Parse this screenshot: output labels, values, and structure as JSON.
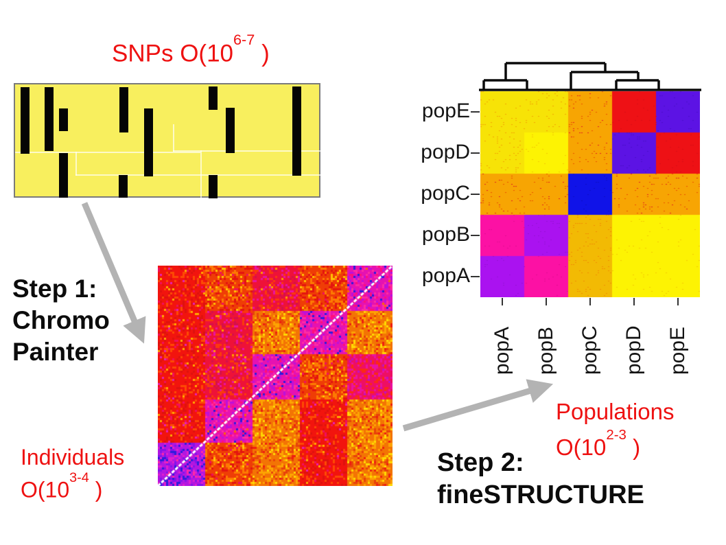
{
  "labels": {
    "snps_prefix": "SNPs O(10",
    "snps_sup": "6-7",
    "snps_suffix": " )",
    "step1_line1": "Step 1:",
    "step1_line2": "Chromo",
    "step1_line3": "Painter",
    "individuals_line1": "Individuals",
    "individuals_prefix": "O(10",
    "individuals_sup": "3-4",
    "individuals_suffix": " )",
    "populations_line1": "Populations",
    "populations_prefix": "O(10",
    "populations_sup": "2-3",
    "populations_suffix": " )",
    "step2_line1": "Step 2:",
    "step2_line2": "fineSTRUCTURE"
  },
  "colors": {
    "red_text": "#ee1111",
    "black_text": "#0c0c0c",
    "arrow_gray": "#b3b3b3",
    "snps_bg": "#f8ef5e",
    "snps_border": "#7a7a7a",
    "bar_black": "#050505",
    "dendrogram_black": "#0a0a0a"
  },
  "snps_figure": {
    "bars": [
      [
        8,
        4,
        13,
        97
      ],
      [
        43,
        4,
        13,
        93
      ],
      [
        64,
        35,
        13,
        33
      ],
      [
        64,
        100,
        13,
        65
      ],
      [
        152,
        4,
        13,
        66
      ],
      [
        151,
        132,
        13,
        33
      ],
      [
        188,
        35,
        13,
        99
      ],
      [
        282,
        3,
        13,
        34
      ],
      [
        282,
        132,
        13,
        34
      ],
      [
        307,
        34,
        13,
        66
      ],
      [
        404,
        3,
        13,
        130
      ]
    ],
    "faint_lines": [
      [
        0,
        98,
        270,
        2
      ],
      [
        230,
        96,
        217,
        2
      ],
      [
        88,
        131,
        359,
        2
      ],
      [
        0,
        195,
        300,
        2
      ],
      [
        330,
        195,
        117,
        2
      ],
      [
        130,
        237,
        200,
        2
      ],
      [
        270,
        96,
        2,
        101
      ],
      [
        88,
        98,
        2,
        35
      ],
      [
        130,
        195,
        2,
        44
      ],
      [
        330,
        195,
        2,
        44
      ],
      [
        230,
        58,
        2,
        40
      ]
    ]
  },
  "chart_data": [
    {
      "type": "heatmap",
      "title": "ChromoPainter coancestry matrix (individuals x individuals)",
      "rows": 5,
      "cols": 5,
      "diagonal": "white line, bottom-left to top-right",
      "cells": [
        [
          "red",
          "orangeRed",
          "crimson",
          "orangeRed",
          "magenta"
        ],
        [
          "red",
          "crimson",
          "orange",
          "magenta",
          "orange"
        ],
        [
          "red",
          "crimson",
          "magenta",
          "orangeRed",
          "crimsonMag"
        ],
        [
          "red",
          "magenta",
          "orange",
          "red",
          "orange"
        ],
        [
          "purpleDiag",
          "orangeRed",
          "orange",
          "red",
          "orange"
        ]
      ],
      "palette": {
        "red": {
          "base": "#f2140e",
          "spots": [
            [
              "#fd4a04",
              0.14
            ],
            [
              "#de120f",
              0.14
            ],
            [
              "#f00f5e",
              0.05
            ],
            [
              "#ffab00",
              0.02
            ],
            [
              "#e720b4",
              0.02
            ]
          ]
        },
        "orangeRed": {
          "base": "#ef3d06",
          "spots": [
            [
              "#fd7a02",
              0.22
            ],
            [
              "#e41410",
              0.18
            ],
            [
              "#ffc303",
              0.06
            ],
            [
              "#f00f5e",
              0.03
            ]
          ]
        },
        "orange": {
          "base": "#f37404",
          "spots": [
            [
              "#fda302",
              0.22
            ],
            [
              "#e8420a",
              0.14
            ],
            [
              "#ffd903",
              0.08
            ],
            [
              "#ef1f10",
              0.05
            ]
          ]
        },
        "crimson": {
          "base": "#ee1238",
          "spots": [
            [
              "#fb3a0c",
              0.15
            ],
            [
              "#ea12a0",
              0.12
            ],
            [
              "#d5104a",
              0.1
            ],
            [
              "#ff9d00",
              0.02
            ]
          ]
        },
        "crimsonMag": {
          "base": "#ee0f63",
          "spots": [
            [
              "#ea12a0",
              0.2
            ],
            [
              "#fb2a14",
              0.18
            ],
            [
              "#c011c0",
              0.05
            ]
          ]
        },
        "magenta": {
          "base": "#e512b2",
          "spots": [
            [
              "#bd10da",
              0.15
            ],
            [
              "#fd2ba4",
              0.15
            ],
            [
              "#2f1cdc",
              0.06
            ],
            [
              "#fb6a04",
              0.02
            ],
            [
              "#ff0f7a",
              0.1
            ]
          ]
        },
        "purpleDiag": {
          "base": "#b316e0",
          "spots": [
            [
              "#8413ea",
              0.18
            ],
            [
              "#2f1cdc",
              0.12
            ],
            [
              "#e020cf",
              0.15
            ],
            [
              "#ff2aa4",
              0.05
            ]
          ]
        }
      }
    },
    {
      "type": "heatmap",
      "title": "fineSTRUCTURE population coancestry matrix",
      "row_labels_top_to_bottom": [
        "popE",
        "popD",
        "popC",
        "popB",
        "popA"
      ],
      "col_labels_left_to_right": [
        "popA",
        "popB",
        "popC",
        "popD",
        "popE"
      ],
      "cells": [
        [
          "paleYellow",
          "paleYellow",
          "orange",
          "red",
          "violet"
        ],
        [
          "paleYellow",
          "brightYellow",
          "orange",
          "violet",
          "red"
        ],
        [
          "orange",
          "orange",
          "blue",
          "orange",
          "orange"
        ],
        [
          "magenta",
          "purple",
          "gold",
          "brightYellow",
          "brightYellow"
        ],
        [
          "purple",
          "magenta",
          "gold",
          "brightYellow",
          "brightYellow"
        ]
      ],
      "palette": {
        "paleYellow": {
          "base": "#f7e307",
          "dots": [
            [
              "#f2a303",
              0.1
            ]
          ]
        },
        "brightYellow": {
          "base": "#fdf303",
          "dots": [
            [
              "#f3c903",
              0.04
            ]
          ]
        },
        "orange": {
          "base": "#f7a503",
          "dots": [
            [
              "#ea5202",
              0.06
            ],
            [
              "#e02020",
              0.03
            ]
          ]
        },
        "gold": {
          "base": "#f2ba04",
          "dots": [
            [
              "#ef8d03",
              0.12
            ]
          ]
        },
        "red": {
          "base": "#ee1115",
          "dots": [
            [
              "#d81015",
              0.05
            ]
          ]
        },
        "violet": {
          "base": "#5c13e4",
          "dots": [
            [
              "#4a11c8",
              0.06
            ]
          ]
        },
        "blue": {
          "base": "#1013e8",
          "dots": [
            [
              "#0c10c4",
              0.05
            ]
          ]
        },
        "magenta": {
          "base": "#fc11a4",
          "dots": [
            [
              "#e20f92",
              0.06
            ]
          ]
        },
        "purple": {
          "base": "#aa12f0",
          "dots": [
            [
              "#9511d6",
              0.06
            ]
          ]
        }
      },
      "dendrogram": {
        "topology": "((popA,popB),(popC,(popD,popE)))",
        "segments": [
          [
            698,
            131,
            1022,
            131
          ],
          [
            705,
            117,
            768,
            117
          ],
          [
            898,
            117,
            960,
            117
          ],
          [
            832,
            105,
            930,
            105
          ],
          [
            737,
            92,
            882,
            92
          ],
          [
            705,
            117,
            705,
            131
          ],
          [
            768,
            117,
            768,
            131
          ],
          [
            898,
            117,
            898,
            131
          ],
          [
            960,
            117,
            960,
            131
          ],
          [
            832,
            105,
            832,
            131
          ],
          [
            930,
            105,
            930,
            117
          ],
          [
            737,
            92,
            737,
            117
          ],
          [
            882,
            92,
            882,
            105
          ]
        ]
      }
    }
  ]
}
